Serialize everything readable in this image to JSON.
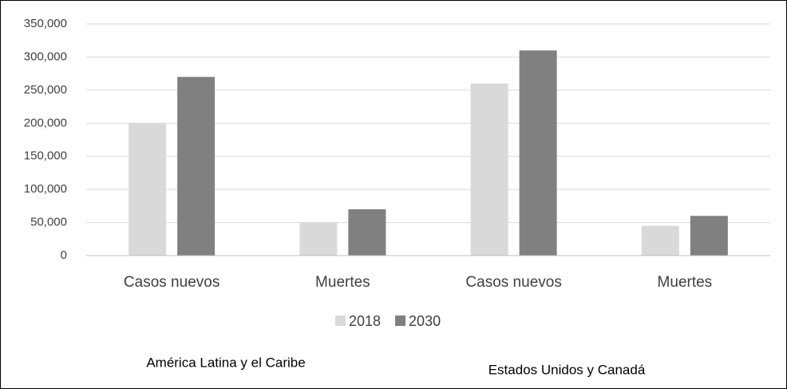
{
  "chart_data": {
    "type": "bar",
    "categories": [
      "Casos nuevos",
      "Muertes",
      "Casos nuevos",
      "Muertes"
    ],
    "series": [
      {
        "name": "2018",
        "color": "#d9d9d9",
        "values": [
          200000,
          50000,
          260000,
          45000
        ]
      },
      {
        "name": "2030",
        "color": "#808080",
        "values": [
          270000,
          70000,
          310000,
          60000
        ]
      }
    ],
    "group_labels": [
      "América Latina y el Caribe",
      "Estados Unidos y Canadá"
    ],
    "ylim": [
      0,
      350000
    ],
    "yticks": [
      0,
      {
        "value": 50000,
        "label": "50,000"
      },
      {
        "value": 100000,
        "label": "100,000"
      },
      {
        "value": 150000,
        "label": "150,000"
      },
      {
        "value": 200000,
        "label": "200,000"
      },
      {
        "value": 250000,
        "label": "250,000"
      },
      {
        "value": 300000,
        "label": "300,000"
      },
      {
        "value": 350000,
        "label": "350,000"
      }
    ],
    "grid": true,
    "legend": "bottom"
  }
}
